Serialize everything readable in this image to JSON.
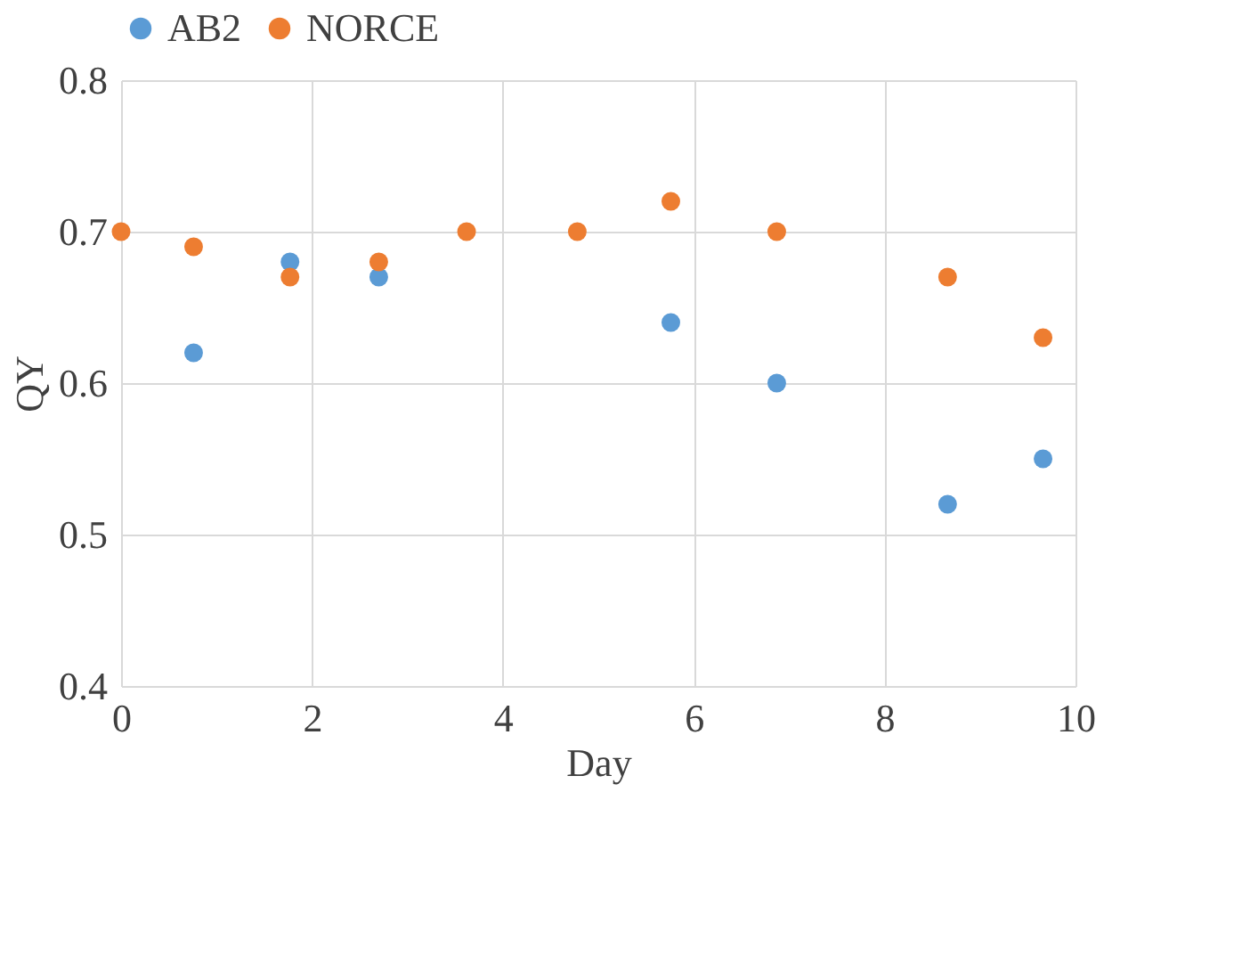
{
  "chart_data": {
    "type": "scatter",
    "xlabel": "Day",
    "ylabel": "QY",
    "x": [
      0,
      0.76,
      1.77,
      2.7,
      3.62,
      4.78,
      5.76,
      6.87,
      8.66,
      9.66
    ],
    "series": [
      {
        "name": "AB2",
        "color": "#5b9bd5",
        "values": [
          null,
          0.62,
          0.68,
          0.67,
          null,
          null,
          0.64,
          0.6,
          0.52,
          0.55
        ]
      },
      {
        "name": "NORCE",
        "color": "#ed7d31",
        "values": [
          0.7,
          0.69,
          0.67,
          0.68,
          0.7,
          0.7,
          0.72,
          0.7,
          0.67,
          0.63
        ]
      }
    ],
    "xlim": [
      0,
      10
    ],
    "xticks": [
      0,
      2,
      4,
      6,
      8,
      10
    ],
    "ylim": [
      0.4,
      0.8
    ],
    "yticks": [
      0.4,
      0.5,
      0.6,
      0.7,
      0.8
    ],
    "grid": true,
    "legend": "top",
    "marker": "circle"
  }
}
